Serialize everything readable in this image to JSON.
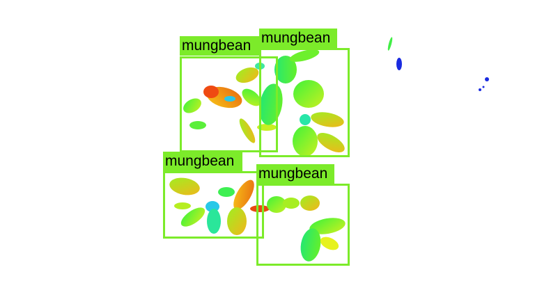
{
  "image": {
    "background": "#ffffff",
    "accent_color": "#7CEB2A",
    "detections": [
      {
        "label": "mungbean"
      },
      {
        "label": "mungbean"
      },
      {
        "label": "mungbean"
      },
      {
        "label": "mungbean"
      }
    ]
  }
}
